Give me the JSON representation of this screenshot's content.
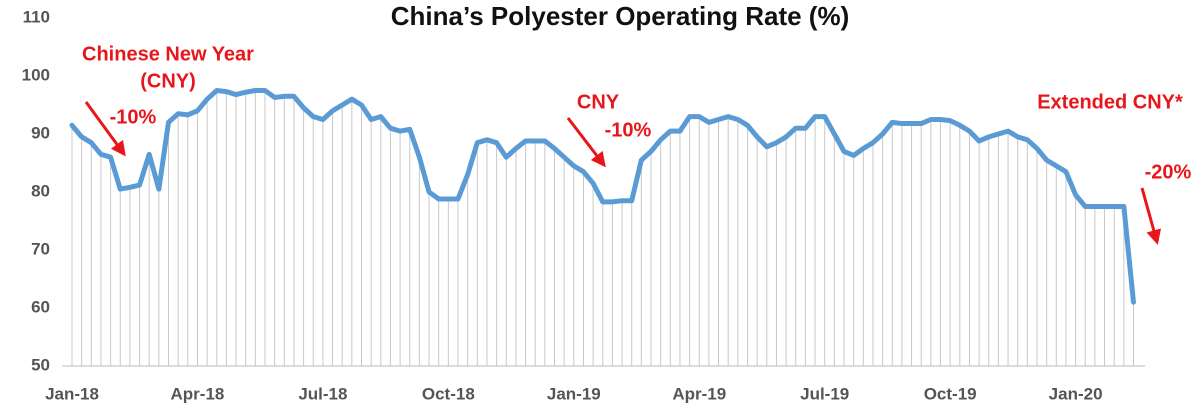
{
  "chart_data": {
    "type": "line",
    "title": "China’s Polyester Operating Rate (%)",
    "categories": [
      "Jan-18",
      null,
      null,
      null,
      null,
      null,
      null,
      null,
      null,
      null,
      null,
      null,
      null,
      "Apr-18",
      null,
      null,
      null,
      null,
      null,
      null,
      null,
      null,
      null,
      null,
      null,
      null,
      "Jul-18",
      null,
      null,
      null,
      null,
      null,
      null,
      null,
      null,
      null,
      null,
      null,
      null,
      "Oct-18",
      null,
      null,
      null,
      null,
      null,
      null,
      null,
      null,
      null,
      null,
      null,
      null,
      "Jan-19",
      null,
      null,
      null,
      null,
      null,
      null,
      null,
      null,
      null,
      null,
      null,
      null,
      "Apr-19",
      null,
      null,
      null,
      null,
      null,
      null,
      null,
      null,
      null,
      null,
      null,
      null,
      "Jul-19",
      null,
      null,
      null,
      null,
      null,
      null,
      null,
      null,
      null,
      null,
      null,
      null,
      "Oct-19",
      null,
      null,
      null,
      null,
      null,
      null,
      null,
      null,
      null,
      null,
      null,
      null,
      "Jan-20",
      null,
      null,
      null,
      null,
      null,
      null
    ],
    "series": [
      {
        "name": "Operating rate",
        "color": "#5b9bd5",
        "values": [
          91.5,
          89.5,
          88.5,
          86.5,
          86,
          80.5,
          80.8,
          81.2,
          86.5,
          80.5,
          92,
          93.5,
          93.3,
          94,
          96,
          97.5,
          97.3,
          96.8,
          97.2,
          97.5,
          97.5,
          96.3,
          96.5,
          96.5,
          94.5,
          93,
          92.5,
          94,
          95,
          96,
          95,
          92.5,
          93,
          91,
          90.5,
          90.8,
          86,
          80,
          78.8,
          78.8,
          78.8,
          83,
          88.5,
          89,
          88.5,
          86,
          87.5,
          88.8,
          88.8,
          88.8,
          87.5,
          86,
          84.5,
          83.5,
          81.5,
          78.3,
          78.3,
          78.5,
          78.5,
          85.5,
          87,
          89,
          90.5,
          90.5,
          93,
          93,
          92,
          92.5,
          93,
          92.5,
          91.5,
          89.5,
          87.8,
          88.5,
          89.5,
          91,
          91,
          93,
          93,
          90,
          87,
          86.3,
          87.5,
          88.5,
          90,
          92,
          91.8,
          91.8,
          91.8,
          92.5,
          92.5,
          92.3,
          91.5,
          90.5,
          88.8,
          89.5,
          90,
          90.5,
          89.5,
          89,
          87.5,
          85.5,
          84.5,
          83.5,
          79.5,
          77.5,
          77.5,
          77.5,
          77.5,
          77.5,
          61
        ]
      }
    ],
    "ylim": [
      50,
      110
    ],
    "yticks": [
      50,
      60,
      70,
      80,
      90,
      100,
      110
    ],
    "drop_lines": true,
    "annotations": [
      "Chinese New Year",
      "(CNY)",
      "-10%",
      "CNY",
      "-10%",
      "Extended CNY*",
      "-20%"
    ]
  }
}
